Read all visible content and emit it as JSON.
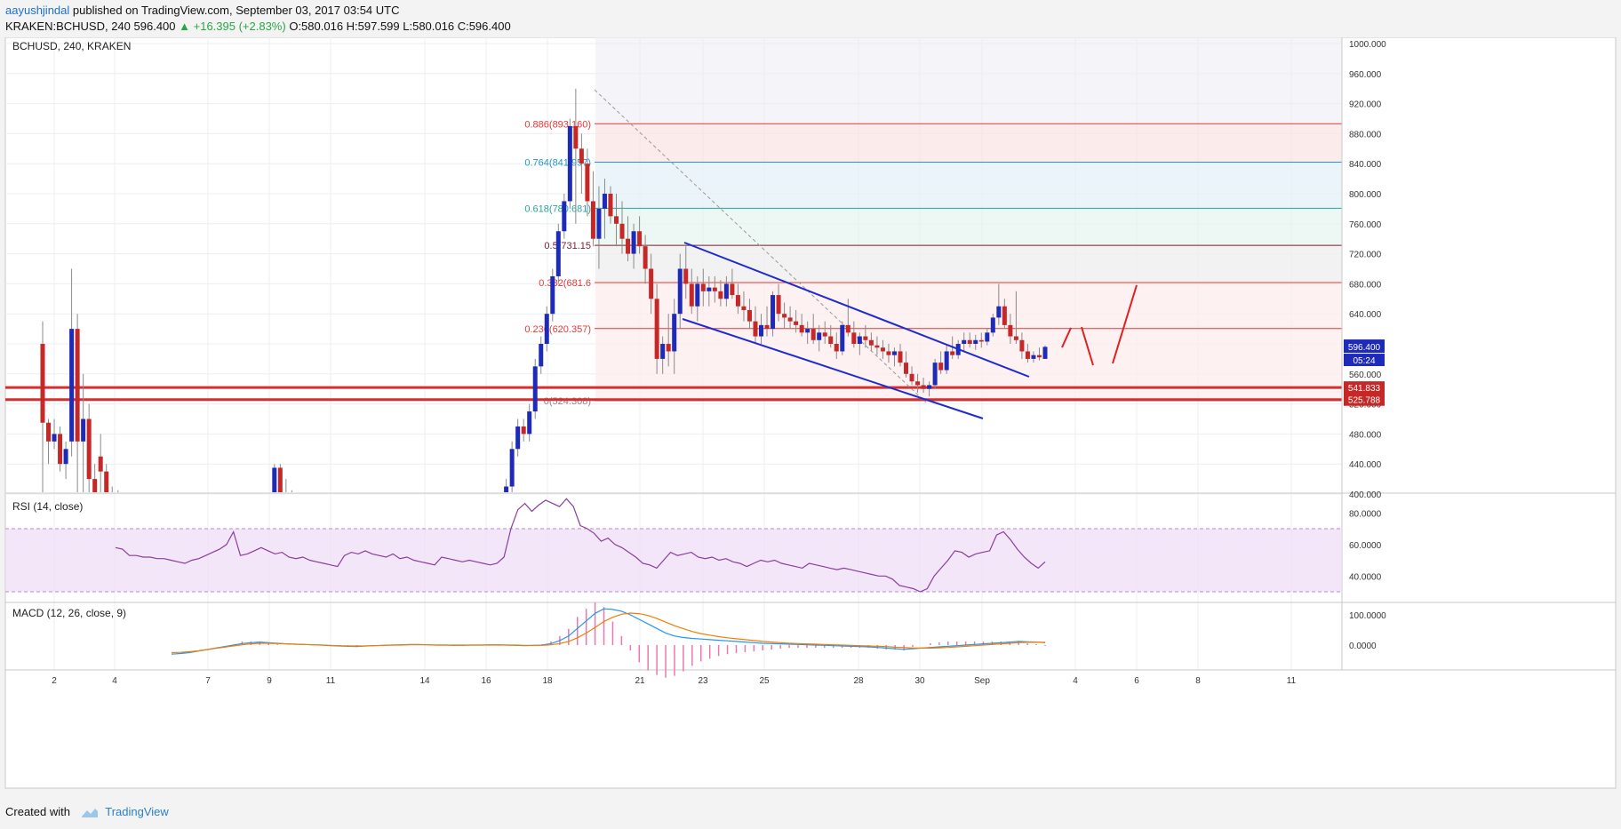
{
  "header": {
    "user": "aayushjindal",
    "published_text": " published on TradingView.com, September 03, 2017 03:54 UTC",
    "symbol": "KRAKEN:BCHUSD, 240",
    "price": "596.400",
    "change": "▲ +16.395 (+2.83%)",
    "ohlc": "O:580.016 H:597.599 L:580.016 C:596.400"
  },
  "footer": {
    "created_with": "Created with",
    "brand": "TradingView"
  },
  "chart_data": {
    "type": "candlestick",
    "title": "BCHUSD, 240, KRAKEN",
    "price_axis": [
      "1000.000",
      "960.000",
      "920.000",
      "880.000",
      "840.000",
      "800.000",
      "760.000",
      "720.000",
      "680.000",
      "640.000",
      "600.000",
      "560.000",
      "520.000",
      "480.000",
      "440.000",
      "400.000"
    ],
    "x_axis": [
      "2",
      "4",
      "7",
      "9",
      "11",
      "14",
      "16",
      "18",
      "21",
      "23",
      "25",
      "28",
      "30",
      "Sep",
      "4",
      "6",
      "8",
      "11"
    ],
    "last_price": {
      "label": "596.400",
      "countdown": "05:24",
      "value": 596.4
    },
    "support_levels": [
      {
        "label": "541.833",
        "value": 541.833
      },
      {
        "label": "525.788",
        "value": 525.788
      }
    ],
    "fib_levels": [
      {
        "label": "0.886(893.160)",
        "value": 893.16,
        "color": "#e53935"
      },
      {
        "label": "0.764(841.957)",
        "value": 841.957,
        "color": "#2196c7"
      },
      {
        "label": "0.618(780.681)",
        "value": 780.681,
        "color": "#26a69a"
      },
      {
        "label": "0.5(731.15",
        "value": 731.15,
        "color": "#7a1f2e"
      },
      {
        "label": "0.382(681.6",
        "value": 681.64,
        "color": "#e53935"
      },
      {
        "label": "0.236(620.357)",
        "value": 620.357,
        "color": "#e53935"
      },
      {
        "label": "0(524.308)",
        "value": 524.308,
        "color": "#888888"
      }
    ],
    "candles": [
      [
        600,
        630,
        380,
        495
      ],
      [
        495,
        500,
        440,
        470
      ],
      [
        470,
        500,
        460,
        480
      ],
      [
        480,
        490,
        430,
        440
      ],
      [
        440,
        470,
        420,
        460
      ],
      [
        470,
        700,
        450,
        620
      ],
      [
        620,
        640,
        400,
        470
      ],
      [
        470,
        560,
        390,
        500
      ],
      [
        500,
        520,
        380,
        420
      ],
      [
        420,
        440,
        380,
        400
      ],
      [
        450,
        480,
        400,
        430
      ],
      [
        430,
        440,
        390,
        400
      ],
      [
        400,
        410,
        380,
        395
      ],
      [
        395,
        405,
        370,
        385
      ],
      [
        385,
        395,
        370,
        380
      ],
      [
        380,
        390,
        365,
        372
      ],
      [
        372,
        385,
        360,
        378
      ],
      [
        378,
        390,
        365,
        370
      ],
      [
        370,
        380,
        360,
        366
      ],
      [
        366,
        375,
        355,
        362
      ],
      [
        362,
        372,
        350,
        358
      ],
      [
        358,
        365,
        348,
        352
      ],
      [
        352,
        360,
        345,
        350
      ],
      [
        350,
        358,
        345,
        355
      ],
      [
        355,
        362,
        348,
        352
      ],
      [
        352,
        360,
        346,
        354
      ],
      [
        354,
        362,
        348,
        357
      ],
      [
        357,
        365,
        350,
        360
      ],
      [
        360,
        368,
        352,
        356
      ],
      [
        356,
        362,
        350,
        354
      ],
      [
        354,
        360,
        346,
        350
      ],
      [
        350,
        356,
        344,
        348
      ],
      [
        348,
        355,
        342,
        346
      ],
      [
        346,
        352,
        340,
        344
      ],
      [
        344,
        350,
        338,
        342
      ],
      [
        342,
        350,
        335,
        345
      ],
      [
        345,
        352,
        338,
        343
      ],
      [
        343,
        350,
        336,
        340
      ],
      [
        340,
        348,
        334,
        342
      ],
      [
        342,
        350,
        336,
        340
      ],
      [
        380,
        440,
        370,
        435
      ],
      [
        435,
        440,
        390,
        400
      ],
      [
        400,
        420,
        380,
        395
      ],
      [
        395,
        405,
        380,
        392
      ],
      [
        392,
        400,
        380,
        390
      ],
      [
        390,
        398,
        378,
        388
      ],
      [
        388,
        396,
        376,
        386
      ],
      [
        386,
        394,
        375,
        384
      ],
      [
        384,
        392,
        372,
        382
      ],
      [
        382,
        390,
        370,
        380
      ],
      [
        380,
        388,
        368,
        378
      ],
      [
        378,
        386,
        366,
        376
      ],
      [
        376,
        384,
        364,
        374
      ],
      [
        374,
        382,
        362,
        372
      ],
      [
        372,
        380,
        360,
        370
      ],
      [
        370,
        378,
        358,
        368
      ],
      [
        368,
        376,
        356,
        366
      ],
      [
        366,
        374,
        354,
        364
      ],
      [
        364,
        372,
        352,
        362
      ],
      [
        362,
        370,
        350,
        360
      ],
      [
        360,
        368,
        348,
        358
      ],
      [
        358,
        366,
        346,
        356
      ],
      [
        356,
        364,
        344,
        354
      ],
      [
        354,
        362,
        342,
        352
      ],
      [
        352,
        360,
        340,
        350
      ],
      [
        350,
        358,
        338,
        348
      ],
      [
        348,
        356,
        336,
        346
      ],
      [
        346,
        354,
        334,
        344
      ],
      [
        344,
        352,
        332,
        342
      ],
      [
        342,
        350,
        330,
        340
      ],
      [
        340,
        348,
        328,
        338
      ],
      [
        338,
        346,
        326,
        336
      ],
      [
        336,
        344,
        324,
        334
      ],
      [
        334,
        342,
        322,
        332
      ],
      [
        332,
        340,
        320,
        330
      ],
      [
        330,
        338,
        318,
        328
      ],
      [
        328,
        336,
        316,
        326
      ],
      [
        326,
        334,
        314,
        324
      ],
      [
        324,
        332,
        312,
        322
      ],
      [
        322,
        330,
        310,
        320
      ],
      [
        380,
        420,
        370,
        410
      ],
      [
        410,
        470,
        400,
        460
      ],
      [
        460,
        500,
        450,
        490
      ],
      [
        490,
        500,
        470,
        480
      ],
      [
        480,
        520,
        470,
        510
      ],
      [
        510,
        580,
        500,
        570
      ],
      [
        570,
        610,
        560,
        600
      ],
      [
        600,
        650,
        590,
        640
      ],
      [
        640,
        700,
        630,
        690
      ],
      [
        690,
        760,
        680,
        750
      ],
      [
        750,
        800,
        740,
        790
      ],
      [
        790,
        900,
        780,
        890
      ],
      [
        890,
        940,
        760,
        860
      ],
      [
        860,
        880,
        800,
        840
      ],
      [
        840,
        860,
        770,
        790
      ],
      [
        790,
        830,
        730,
        740
      ],
      [
        740,
        810,
        700,
        780
      ],
      [
        780,
        820,
        740,
        800
      ],
      [
        800,
        810,
        760,
        770
      ],
      [
        770,
        800,
        730,
        760
      ],
      [
        760,
        790,
        720,
        740
      ],
      [
        740,
        770,
        710,
        720
      ],
      [
        720,
        760,
        700,
        750
      ],
      [
        750,
        770,
        720,
        730
      ],
      [
        730,
        745,
        680,
        700
      ],
      [
        700,
        720,
        640,
        660
      ],
      [
        660,
        680,
        560,
        580
      ],
      [
        580,
        610,
        560,
        600
      ],
      [
        600,
        640,
        570,
        590
      ],
      [
        590,
        660,
        560,
        640
      ],
      [
        640,
        720,
        620,
        700
      ],
      [
        700,
        730,
        660,
        680
      ],
      [
        680,
        700,
        640,
        650
      ],
      [
        650,
        690,
        630,
        680
      ],
      [
        680,
        700,
        650,
        670
      ],
      [
        670,
        690,
        650,
        675
      ],
      [
        675,
        690,
        655,
        670
      ],
      [
        670,
        685,
        650,
        660
      ],
      [
        660,
        690,
        650,
        680
      ],
      [
        680,
        700,
        660,
        665
      ],
      [
        665,
        680,
        640,
        650
      ],
      [
        650,
        670,
        630,
        645
      ],
      [
        645,
        660,
        620,
        630
      ],
      [
        630,
        650,
        600,
        610
      ],
      [
        610,
        640,
        600,
        625
      ],
      [
        625,
        650,
        610,
        620
      ],
      [
        620,
        670,
        610,
        665
      ],
      [
        665,
        680,
        630,
        640
      ],
      [
        640,
        655,
        620,
        635
      ],
      [
        635,
        650,
        620,
        630
      ],
      [
        630,
        645,
        615,
        625
      ],
      [
        625,
        640,
        610,
        615
      ],
      [
        615,
        630,
        600,
        620
      ],
      [
        620,
        640,
        600,
        605
      ],
      [
        605,
        625,
        590,
        615
      ],
      [
        615,
        630,
        600,
        610
      ],
      [
        610,
        625,
        595,
        600
      ],
      [
        600,
        615,
        580,
        590
      ],
      [
        590,
        630,
        585,
        625
      ],
      [
        625,
        660,
        610,
        615
      ],
      [
        615,
        630,
        595,
        600
      ],
      [
        600,
        615,
        585,
        610
      ],
      [
        610,
        625,
        595,
        605
      ],
      [
        605,
        615,
        590,
        598
      ],
      [
        598,
        610,
        585,
        595
      ],
      [
        595,
        605,
        580,
        590
      ],
      [
        590,
        600,
        575,
        585
      ],
      [
        585,
        595,
        570,
        590
      ],
      [
        590,
        600,
        570,
        575
      ],
      [
        575,
        590,
        555,
        560
      ],
      [
        560,
        570,
        545,
        550
      ],
      [
        550,
        560,
        535,
        545
      ],
      [
        545,
        555,
        535,
        540
      ],
      [
        540,
        550,
        530,
        545
      ],
      [
        545,
        580,
        540,
        575
      ],
      [
        575,
        590,
        560,
        565
      ],
      [
        565,
        600,
        560,
        590
      ],
      [
        590,
        610,
        580,
        585
      ],
      [
        585,
        605,
        580,
        600
      ],
      [
        600,
        615,
        590,
        605
      ],
      [
        605,
        615,
        595,
        600
      ],
      [
        600,
        612,
        592,
        605
      ],
      [
        605,
        615,
        595,
        603
      ],
      [
        603,
        620,
        598,
        615
      ],
      [
        615,
        640,
        610,
        635
      ],
      [
        635,
        680,
        625,
        650
      ],
      [
        650,
        660,
        620,
        625
      ],
      [
        625,
        640,
        600,
        610
      ],
      [
        610,
        670,
        600,
        605
      ],
      [
        605,
        615,
        580,
        590
      ],
      [
        590,
        600,
        575,
        580
      ],
      [
        580,
        590,
        575,
        585
      ],
      [
        585,
        595,
        578,
        582
      ],
      [
        580,
        598,
        580,
        596
      ]
    ],
    "channel_lines": [
      {
        "x1": 770,
        "y1": 231,
        "x2": 1158,
        "y2": 382
      },
      {
        "x1": 768,
        "y1": 317,
        "x2": 1106,
        "y2": 429
      }
    ],
    "prediction_lines": [
      {
        "x1": 1195,
        "y1": 349,
        "x2": 1205,
        "y2": 327
      },
      {
        "x1": 1217,
        "y1": 326,
        "x2": 1230,
        "y2": 369
      },
      {
        "x1": 1252,
        "y1": 367,
        "x2": 1279,
        "y2": 279
      }
    ],
    "rsi": {
      "label": "RSI (14, close)",
      "axis": [
        "80.0000",
        "60.0000",
        "40.0000"
      ],
      "values": [
        58,
        57,
        53,
        53,
        52,
        52,
        51,
        51,
        50,
        49,
        48,
        50,
        51,
        53,
        55,
        57,
        60,
        68,
        53,
        54,
        56,
        58,
        56,
        54,
        55,
        52,
        51,
        52,
        50,
        49,
        48,
        47,
        46,
        53,
        55,
        54,
        56,
        54,
        53,
        52,
        54,
        51,
        52,
        50,
        49,
        48,
        47,
        52,
        51,
        50,
        49,
        50,
        49,
        48,
        47,
        48,
        52,
        70,
        82,
        86,
        81,
        85,
        88,
        86,
        84,
        89,
        84,
        72,
        70,
        67,
        62,
        64,
        60,
        58,
        55,
        52,
        48,
        47,
        45,
        50,
        55,
        53,
        54,
        55,
        52,
        51,
        52,
        50,
        51,
        49,
        48,
        46,
        48,
        50,
        49,
        50,
        48,
        47,
        46,
        45,
        48,
        47,
        46,
        45,
        44,
        45,
        44,
        43,
        42,
        41,
        40,
        40,
        38,
        34,
        33,
        32,
        30,
        32,
        40,
        45,
        50,
        56,
        55,
        52,
        54,
        55,
        56,
        66,
        68,
        63,
        57,
        52,
        48,
        45,
        49
      ]
    },
    "macd": {
      "label": "MACD (12, 26, close, 9)",
      "axis": [
        "100.0000",
        "0.0000"
      ],
      "macd": [
        -30,
        -28,
        -25,
        -20,
        -15,
        -10,
        -5,
        0,
        5,
        8,
        10,
        8,
        6,
        4,
        3,
        2,
        1,
        0,
        -2,
        -3,
        -4,
        -5,
        -3,
        -2,
        -1,
        0,
        1,
        2,
        2,
        1,
        0,
        0,
        -1,
        -1,
        0,
        0,
        1,
        1,
        0,
        -1,
        -2,
        -1,
        0,
        5,
        15,
        30,
        55,
        80,
        105,
        120,
        118,
        112,
        100,
        85,
        70,
        55,
        40,
        30,
        25,
        22,
        20,
        18,
        16,
        14,
        12,
        10,
        8,
        6,
        5,
        4,
        3,
        2,
        1,
        0,
        -1,
        -2,
        -3,
        -4,
        -5,
        -6,
        -8,
        -10,
        -12,
        -14,
        -12,
        -10,
        -8,
        -6,
        -4,
        -2,
        0,
        2,
        4,
        6,
        8,
        10,
        12,
        11,
        10,
        8
      ],
      "signal": [
        -25,
        -24,
        -22,
        -19,
        -15,
        -11,
        -7,
        -3,
        1,
        4,
        6,
        6,
        5,
        4,
        3,
        2,
        1,
        0,
        -1,
        -2,
        -3,
        -3,
        -3,
        -2,
        -1,
        0,
        0,
        1,
        1,
        1,
        0,
        0,
        0,
        0,
        0,
        0,
        0,
        0,
        0,
        0,
        -1,
        -1,
        -1,
        1,
        5,
        12,
        24,
        40,
        58,
        78,
        92,
        102,
        106,
        104,
        98,
        88,
        76,
        64,
        54,
        45,
        38,
        33,
        28,
        24,
        21,
        18,
        15,
        12,
        10,
        8,
        6,
        5,
        4,
        3,
        2,
        1,
        0,
        -1,
        -2,
        -3,
        -4,
        -5,
        -7,
        -8,
        -10,
        -10,
        -10,
        -9,
        -8,
        -6,
        -4,
        -2,
        0,
        2,
        4,
        6,
        8,
        9,
        9,
        9
      ]
    }
  }
}
